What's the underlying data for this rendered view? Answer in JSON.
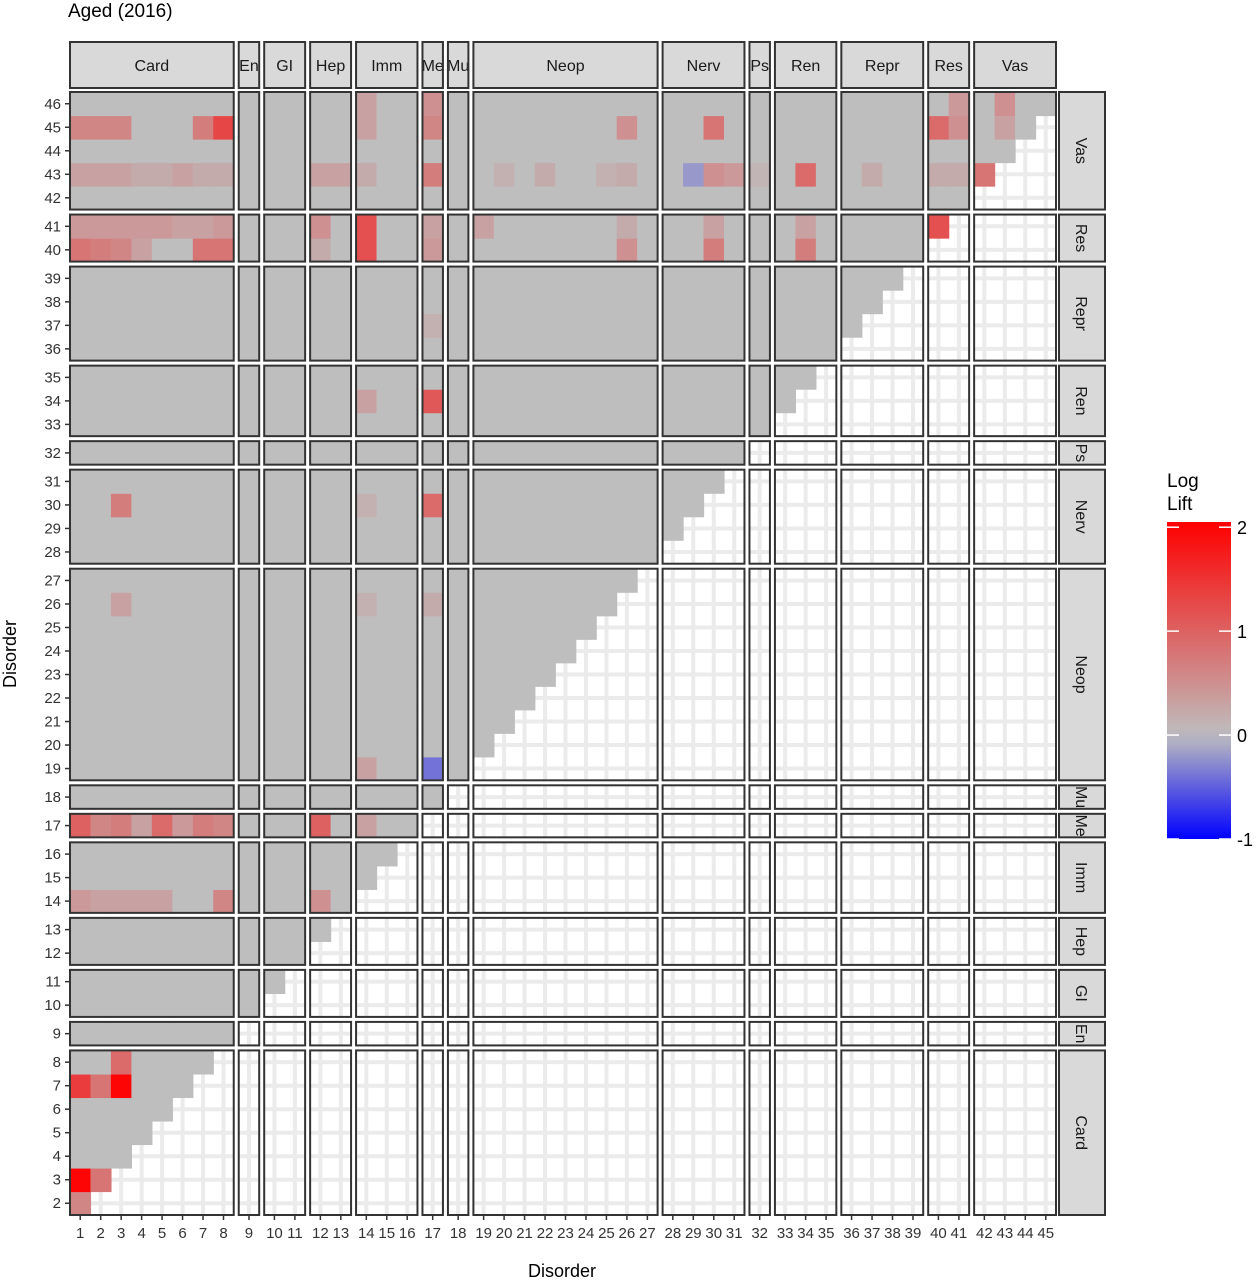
{
  "chart_data": {
    "type": "heatmap",
    "title": "Aged (2016)",
    "xlabel": "Disorder",
    "ylabel": "Disorder",
    "x_min": 1,
    "x_max": 45,
    "y_min": 2,
    "y_max": 46,
    "groups": [
      {
        "label": "Card",
        "from": 1,
        "to": 8
      },
      {
        "label": "En",
        "from": 9,
        "to": 9
      },
      {
        "label": "GI",
        "from": 10,
        "to": 11
      },
      {
        "label": "Hep",
        "from": 12,
        "to": 13
      },
      {
        "label": "Imm",
        "from": 14,
        "to": 16
      },
      {
        "label": "Me",
        "from": 17,
        "to": 17
      },
      {
        "label": "Mu",
        "from": 18,
        "to": 18
      },
      {
        "label": "Neop",
        "from": 19,
        "to": 27
      },
      {
        "label": "Nerv",
        "from": 28,
        "to": 31
      },
      {
        "label": "Ps",
        "from": 32,
        "to": 32
      },
      {
        "label": "Ren",
        "from": 33,
        "to": 35
      },
      {
        "label": "Repr",
        "from": 36,
        "to": 39
      },
      {
        "label": "Res",
        "from": 40,
        "to": 41
      },
      {
        "label": "Vas",
        "from": 42,
        "to": 46
      }
    ],
    "x_tick_labels": [
      "1",
      "2",
      "3",
      "4",
      "5",
      "6",
      "7",
      "8",
      "9",
      "10",
      "11",
      "12",
      "13",
      "14",
      "15",
      "16",
      "17",
      "18",
      "19",
      "20",
      "21",
      "22",
      "23",
      "24",
      "25",
      "26",
      "27",
      "28",
      "29",
      "30",
      "31",
      "32",
      "33",
      "34",
      "35",
      "36",
      "37",
      "38",
      "39",
      "40",
      "41",
      "42",
      "43",
      "44",
      "45"
    ],
    "y_tick_labels": [
      "2",
      "3",
      "4",
      "5",
      "6",
      "7",
      "8",
      "9",
      "10",
      "11",
      "12",
      "13",
      "14",
      "15",
      "16",
      "17",
      "18",
      "19",
      "20",
      "21",
      "22",
      "23",
      "24",
      "25",
      "26",
      "27",
      "28",
      "29",
      "30",
      "31",
      "32",
      "33",
      "34",
      "35",
      "36",
      "37",
      "38",
      "39",
      "40",
      "41",
      "42",
      "43",
      "44",
      "45",
      "46"
    ],
    "lower_triangle_default_value": 0,
    "cells": [
      [
        3,
        1,
        2.0
      ],
      [
        3,
        2,
        0.8
      ],
      [
        2,
        1,
        0.6
      ],
      [
        7,
        1,
        1.4
      ],
      [
        7,
        2,
        0.8
      ],
      [
        7,
        3,
        2.0
      ],
      [
        8,
        3,
        0.9
      ],
      [
        14,
        1,
        0.4
      ],
      [
        14,
        2,
        0.3
      ],
      [
        14,
        3,
        0.3
      ],
      [
        14,
        4,
        0.3
      ],
      [
        14,
        5,
        0.3
      ],
      [
        14,
        8,
        0.6
      ],
      [
        14,
        12,
        0.5
      ],
      [
        17,
        1,
        1.0
      ],
      [
        17,
        2,
        0.6
      ],
      [
        17,
        3,
        0.7
      ],
      [
        17,
        4,
        0.3
      ],
      [
        17,
        5,
        0.9
      ],
      [
        17,
        6,
        0.4
      ],
      [
        17,
        7,
        0.7
      ],
      [
        17,
        8,
        0.6
      ],
      [
        17,
        12,
        1.0
      ],
      [
        17,
        14,
        0.3
      ],
      [
        19,
        14,
        0.3
      ],
      [
        19,
        17,
        -0.4
      ],
      [
        26,
        3,
        0.3
      ],
      [
        26,
        14,
        0.15
      ],
      [
        26,
        17,
        0.2
      ],
      [
        30,
        3,
        0.7
      ],
      [
        30,
        14,
        0.15
      ],
      [
        30,
        17,
        0.9
      ],
      [
        34,
        14,
        0.3
      ],
      [
        34,
        17,
        1.1
      ],
      [
        37,
        17,
        0.15
      ],
      [
        40,
        1,
        0.8
      ],
      [
        40,
        2,
        0.7
      ],
      [
        40,
        3,
        0.6
      ],
      [
        40,
        4,
        0.3
      ],
      [
        40,
        7,
        0.8
      ],
      [
        40,
        8,
        0.8
      ],
      [
        40,
        12,
        0.2
      ],
      [
        40,
        14,
        1.2
      ],
      [
        40,
        17,
        0.4
      ],
      [
        40,
        26,
        0.5
      ],
      [
        40,
        30,
        0.7
      ],
      [
        40,
        34,
        0.7
      ],
      [
        41,
        1,
        0.4
      ],
      [
        41,
        2,
        0.4
      ],
      [
        41,
        3,
        0.4
      ],
      [
        41,
        4,
        0.4
      ],
      [
        41,
        5,
        0.4
      ],
      [
        41,
        6,
        0.3
      ],
      [
        41,
        7,
        0.3
      ],
      [
        41,
        8,
        0.4
      ],
      [
        41,
        12,
        0.5
      ],
      [
        41,
        14,
        1.2
      ],
      [
        41,
        17,
        0.3
      ],
      [
        41,
        19,
        0.3
      ],
      [
        41,
        26,
        0.2
      ],
      [
        41,
        30,
        0.3
      ],
      [
        41,
        34,
        0.3
      ],
      [
        41,
        40,
        1.2
      ],
      [
        43,
        1,
        0.3
      ],
      [
        43,
        2,
        0.3
      ],
      [
        43,
        3,
        0.3
      ],
      [
        43,
        4,
        0.2
      ],
      [
        43,
        5,
        0.2
      ],
      [
        43,
        6,
        0.3
      ],
      [
        43,
        7,
        0.2
      ],
      [
        43,
        8,
        0.2
      ],
      [
        43,
        12,
        0.3
      ],
      [
        43,
        13,
        0.3
      ],
      [
        43,
        14,
        0.2
      ],
      [
        43,
        17,
        0.7
      ],
      [
        43,
        20,
        0.15
      ],
      [
        43,
        22,
        0.2
      ],
      [
        43,
        25,
        0.15
      ],
      [
        43,
        26,
        0.2
      ],
      [
        43,
        29,
        -0.2
      ],
      [
        43,
        30,
        0.5
      ],
      [
        43,
        31,
        0.4
      ],
      [
        43,
        32,
        0.1
      ],
      [
        43,
        34,
        0.9
      ],
      [
        43,
        37,
        0.2
      ],
      [
        43,
        40,
        0.2
      ],
      [
        43,
        41,
        0.2
      ],
      [
        43,
        42,
        0.8
      ],
      [
        45,
        1,
        0.6
      ],
      [
        45,
        2,
        0.6
      ],
      [
        45,
        3,
        0.6
      ],
      [
        45,
        7,
        0.7
      ],
      [
        45,
        8,
        1.3
      ],
      [
        45,
        14,
        0.3
      ],
      [
        45,
        17,
        0.6
      ],
      [
        45,
        26,
        0.5
      ],
      [
        45,
        30,
        0.8
      ],
      [
        45,
        40,
        0.9
      ],
      [
        45,
        41,
        0.5
      ],
      [
        45,
        43,
        0.3
      ],
      [
        46,
        14,
        0.3
      ],
      [
        46,
        17,
        0.5
      ],
      [
        46,
        41,
        0.4
      ],
      [
        46,
        43,
        0.5
      ]
    ],
    "color_scale": {
      "name": "Log Lift",
      "low_color": "#0000ff",
      "mid_color": "#bebebe",
      "high_color": "#ff0000",
      "midpoint": 0,
      "limits": [
        -1,
        2.05
      ],
      "breaks": [
        2,
        1,
        0,
        -1
      ],
      "break_labels": [
        "2",
        "1",
        "0",
        "-1"
      ]
    },
    "empty_cell_color": "#ebebeb",
    "panel_background": "#ffffff",
    "strip_fill": "#d9d9d9",
    "legend_position": "right"
  }
}
